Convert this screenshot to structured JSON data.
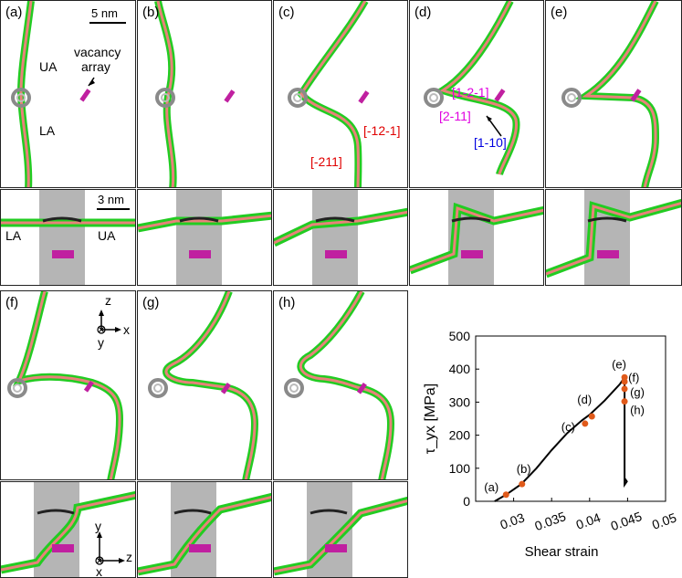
{
  "panels": {
    "a": {
      "label": "(a)",
      "scale_top": "5 nm",
      "UA": "UA",
      "LA": "LA",
      "vacancy": "vacancy",
      "array": "array",
      "scale_bottom": "3 nm",
      "bottom_LA": "LA",
      "bottom_UA": "UA"
    },
    "b": {
      "label": "(b)"
    },
    "c": {
      "label": "(c)",
      "dir1": "[-12-1]",
      "dir2": "[-211]"
    },
    "d": {
      "label": "(d)",
      "dir1": "[1-2-1]",
      "dir2": "[2-11]",
      "dir3": "[1-10]"
    },
    "e": {
      "label": "(e)"
    },
    "f": {
      "label": "(f)",
      "axis_z": "z",
      "axis_x": "x",
      "axis_y": "y",
      "axis2_y": "y",
      "axis2_z": "z",
      "axis2_x": "x"
    },
    "g": {
      "label": "(g)"
    },
    "h": {
      "label": "(h)"
    }
  },
  "colors": {
    "dislocation_core": "#e8827a",
    "dislocation_edge": "#22cc22",
    "void": "#9a9a9a",
    "vacancy": "#c020a0",
    "point": "#e05a1a"
  },
  "chart_data": {
    "type": "line",
    "xlabel": "Shear strain",
    "ylabel": "τ_yx [MPa]",
    "xlim": [
      0.025,
      0.05
    ],
    "ylim": [
      0,
      500
    ],
    "xticks": [
      "0.03",
      "0.035",
      "0.04",
      "0.045",
      "0.05"
    ],
    "xtick_values": [
      0.03,
      0.035,
      0.04,
      0.045,
      0.05
    ],
    "yticks": [
      "0",
      "100",
      "200",
      "300",
      "400",
      "500"
    ],
    "ytick_values": [
      0,
      100,
      200,
      300,
      400,
      500
    ],
    "curve": {
      "x": [
        0.0275,
        0.029,
        0.031,
        0.033,
        0.035,
        0.037,
        0.039,
        0.04,
        0.042,
        0.044,
        0.0446,
        0.0446,
        0.0446,
        0.0449,
        0.0446
      ],
      "y": [
        0,
        20,
        52,
        100,
        155,
        205,
        245,
        262,
        305,
        355,
        375,
        370,
        50,
        60,
        70
      ]
    },
    "points": [
      {
        "label": "(a)",
        "x": 0.029,
        "y": 20
      },
      {
        "label": "(b)",
        "x": 0.0311,
        "y": 52
      },
      {
        "label": "(c)",
        "x": 0.0394,
        "y": 235
      },
      {
        "label": "(d)",
        "x": 0.0403,
        "y": 257
      },
      {
        "label": "(e)",
        "x": 0.0446,
        "y": 375
      },
      {
        "label": "(f)",
        "x": 0.0446,
        "y": 362
      },
      {
        "label": "(g)",
        "x": 0.0446,
        "y": 340
      },
      {
        "label": "(h)",
        "x": 0.0446,
        "y": 302
      }
    ]
  }
}
